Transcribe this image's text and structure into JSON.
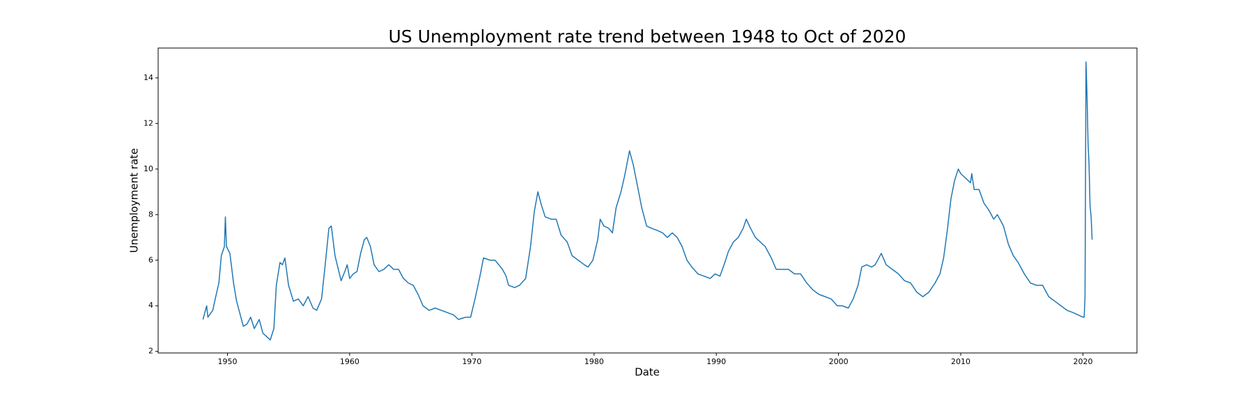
{
  "chart_data": {
    "type": "line",
    "title": "US Unemployment rate trend between 1948 to Oct of 2020",
    "x_label": "Date",
    "y_label": "Unemployment rate",
    "color": "#1f77b4",
    "xlim": [
      1944.33,
      2024.42
    ],
    "xticks": [
      1950,
      1960,
      1970,
      1980,
      1990,
      2000,
      2010,
      2020
    ],
    "ylim": [
      1.93,
      15.31
    ],
    "yticks": [
      2,
      4,
      6,
      8,
      10,
      12,
      14
    ],
    "x": [
      1948.0,
      1948.3,
      1948.4,
      1948.8,
      1949.0,
      1949.3,
      1949.5,
      1949.75,
      1949.83,
      1949.92,
      1950.2,
      1950.5,
      1950.75,
      1951.0,
      1951.3,
      1951.6,
      1951.9,
      1952.2,
      1952.6,
      1952.9,
      1953.3,
      1953.5,
      1953.8,
      1954.0,
      1954.3,
      1954.5,
      1954.7,
      1955.0,
      1955.4,
      1955.8,
      1956.2,
      1956.6,
      1957.0,
      1957.3,
      1957.7,
      1958.0,
      1958.3,
      1958.5,
      1958.8,
      1959.3,
      1959.6,
      1959.8,
      1960.0,
      1960.3,
      1960.6,
      1960.9,
      1961.2,
      1961.4,
      1961.7,
      1962.0,
      1962.4,
      1962.8,
      1963.2,
      1963.6,
      1964.0,
      1964.4,
      1964.8,
      1965.2,
      1965.6,
      1966.0,
      1966.5,
      1967.0,
      1967.5,
      1968.0,
      1968.5,
      1968.9,
      1969.5,
      1969.9,
      1970.3,
      1970.7,
      1970.95,
      1971.5,
      1971.9,
      1972.5,
      1972.8,
      1973.0,
      1973.5,
      1973.9,
      1974.4,
      1974.8,
      1975.1,
      1975.4,
      1975.7,
      1976.0,
      1976.5,
      1976.9,
      1977.3,
      1977.8,
      1978.2,
      1978.7,
      1979.2,
      1979.5,
      1979.9,
      1980.3,
      1980.5,
      1980.8,
      1981.2,
      1981.5,
      1981.8,
      1982.2,
      1982.5,
      1982.9,
      1983.2,
      1983.5,
      1983.9,
      1984.3,
      1984.7,
      1985.2,
      1985.6,
      1986.0,
      1986.4,
      1986.8,
      1987.2,
      1987.6,
      1988.0,
      1988.5,
      1989.0,
      1989.5,
      1989.9,
      1990.3,
      1990.7,
      1991.0,
      1991.4,
      1991.8,
      1992.2,
      1992.45,
      1992.8,
      1993.2,
      1993.6,
      1994.0,
      1994.5,
      1994.9,
      1995.4,
      1995.9,
      1996.4,
      1996.9,
      1997.4,
      1997.9,
      1998.4,
      1998.9,
      1999.4,
      1999.9,
      2000.3,
      2000.8,
      2001.2,
      2001.6,
      2001.9,
      2002.3,
      2002.7,
      2003.0,
      2003.5,
      2003.9,
      2004.4,
      2004.9,
      2005.4,
      2005.9,
      2006.4,
      2006.9,
      2007.4,
      2007.9,
      2008.3,
      2008.6,
      2008.9,
      2009.2,
      2009.5,
      2009.8,
      2010.0,
      2010.4,
      2010.8,
      2010.9,
      2011.1,
      2011.5,
      2011.9,
      2012.3,
      2012.7,
      2013.0,
      2013.5,
      2013.9,
      2014.3,
      2014.7,
      2015.2,
      2015.7,
      2016.2,
      2016.7,
      2017.2,
      2017.7,
      2018.2,
      2018.7,
      2019.2,
      2019.6,
      2020.0,
      2020.1,
      2020.17,
      2020.25,
      2020.33,
      2020.42,
      2020.5,
      2020.58,
      2020.67,
      2020.75
    ],
    "values": [
      3.4,
      4.0,
      3.5,
      3.8,
      4.3,
      5.0,
      6.2,
      6.6,
      7.9,
      6.6,
      6.3,
      5.0,
      4.2,
      3.7,
      3.1,
      3.2,
      3.5,
      3.0,
      3.4,
      2.8,
      2.6,
      2.5,
      3.0,
      4.9,
      5.9,
      5.8,
      6.1,
      4.9,
      4.2,
      4.3,
      4.0,
      4.4,
      3.9,
      3.8,
      4.3,
      5.8,
      7.4,
      7.5,
      6.2,
      5.1,
      5.5,
      5.8,
      5.2,
      5.4,
      5.5,
      6.3,
      6.9,
      7.0,
      6.6,
      5.8,
      5.5,
      5.6,
      5.8,
      5.6,
      5.6,
      5.2,
      5.0,
      4.9,
      4.5,
      4.0,
      3.8,
      3.9,
      3.8,
      3.7,
      3.6,
      3.4,
      3.5,
      3.5,
      4.4,
      5.4,
      6.1,
      6.0,
      6.0,
      5.6,
      5.3,
      4.9,
      4.8,
      4.9,
      5.2,
      6.6,
      8.1,
      9.0,
      8.4,
      7.9,
      7.8,
      7.8,
      7.1,
      6.8,
      6.2,
      6.0,
      5.8,
      5.7,
      6.0,
      6.9,
      7.8,
      7.5,
      7.4,
      7.2,
      8.3,
      9.0,
      9.7,
      10.8,
      10.2,
      9.4,
      8.3,
      7.5,
      7.4,
      7.3,
      7.2,
      7.0,
      7.2,
      7.0,
      6.6,
      6.0,
      5.7,
      5.4,
      5.3,
      5.2,
      5.4,
      5.3,
      5.9,
      6.4,
      6.8,
      7.0,
      7.4,
      7.8,
      7.4,
      7.0,
      6.8,
      6.6,
      6.1,
      5.6,
      5.6,
      5.6,
      5.4,
      5.4,
      5.0,
      4.7,
      4.5,
      4.4,
      4.3,
      4.0,
      4.0,
      3.9,
      4.3,
      4.9,
      5.7,
      5.8,
      5.7,
      5.8,
      6.3,
      5.8,
      5.6,
      5.4,
      5.1,
      5.0,
      4.6,
      4.4,
      4.6,
      5.0,
      5.4,
      6.1,
      7.3,
      8.7,
      9.5,
      10.0,
      9.8,
      9.6,
      9.4,
      9.8,
      9.1,
      9.1,
      8.5,
      8.2,
      7.8,
      8.0,
      7.5,
      6.7,
      6.2,
      5.9,
      5.4,
      5.0,
      4.9,
      4.9,
      4.4,
      4.2,
      4.0,
      3.8,
      3.7,
      3.6,
      3.5,
      3.5,
      4.4,
      14.7,
      13.3,
      11.1,
      10.2,
      8.4,
      7.9,
      6.9
    ]
  }
}
